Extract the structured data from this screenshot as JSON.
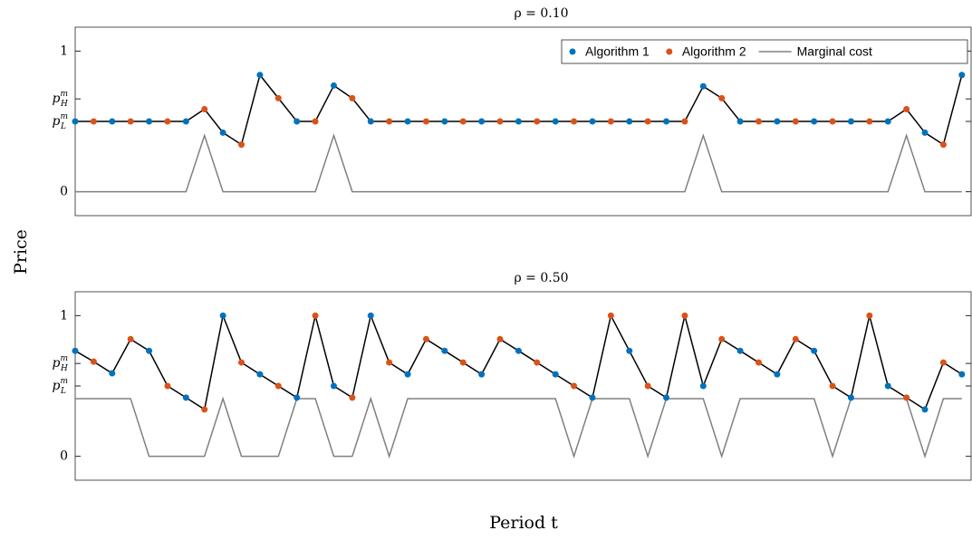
{
  "ylabel": "Price",
  "xlabel": "Period t",
  "chart_data": [
    {
      "type": "line",
      "title": "ρ = 0.10",
      "x": [
        0,
        1,
        2,
        3,
        4,
        5,
        6,
        7,
        8,
        9,
        10,
        11,
        12,
        13,
        14,
        15,
        16,
        17,
        18,
        19,
        20,
        21,
        22,
        23,
        24,
        25,
        26,
        27,
        28,
        29,
        30,
        31,
        32,
        33,
        34,
        35,
        36,
        37,
        38,
        39,
        40,
        41,
        42,
        43,
        44,
        45,
        46,
        47,
        48
      ],
      "xlim": [
        0,
        48.5
      ],
      "ylim": [
        -0.17,
        1.17
      ],
      "yticks": [
        0,
        {
          "value": 0.5,
          "label": {
            "base": "p",
            "sup": "m",
            "sub": "L"
          }
        },
        {
          "value": 0.66,
          "label": {
            "base": "p",
            "sup": "m",
            "sub": "H"
          }
        },
        1
      ],
      "price_line_color": "#000000",
      "legend": "upper right",
      "series": [
        {
          "name": "Algorithm 1",
          "color": "#0072bd",
          "style": "marker",
          "values": [
            0.5,
            null,
            0.5,
            null,
            0.5,
            null,
            0.5,
            null,
            0.42,
            null,
            0.83,
            null,
            0.5,
            null,
            0.755,
            null,
            0.5,
            null,
            0.5,
            null,
            0.5,
            null,
            0.5,
            null,
            0.5,
            null,
            0.5,
            null,
            0.5,
            null,
            0.5,
            null,
            0.5,
            null,
            0.75,
            null,
            0.5,
            null,
            0.5,
            null,
            0.5,
            null,
            0.5,
            null,
            0.5,
            null,
            0.42,
            null,
            0.83
          ]
        },
        {
          "name": "Algorithm 2",
          "color": "#d95319",
          "style": "marker",
          "values": [
            null,
            0.5,
            null,
            0.5,
            null,
            0.5,
            null,
            0.587,
            null,
            0.335,
            null,
            0.665,
            null,
            0.5,
            null,
            0.665,
            null,
            0.5,
            null,
            0.5,
            null,
            0.5,
            null,
            0.5,
            null,
            0.5,
            null,
            0.5,
            null,
            0.5,
            null,
            0.5,
            null,
            0.5,
            null,
            0.665,
            null,
            0.5,
            null,
            0.5,
            null,
            0.5,
            null,
            0.5,
            null,
            0.587,
            null,
            0.335,
            null
          ]
        },
        {
          "name": "Marginal cost",
          "color": "#808080",
          "style": "line",
          "values": [
            0,
            0,
            0,
            0,
            0,
            0,
            0,
            0.4,
            0,
            0,
            0,
            0,
            0,
            0,
            0.4,
            0,
            0,
            0,
            0,
            0,
            0,
            0,
            0,
            0,
            0,
            0,
            0,
            0,
            0,
            0,
            0,
            0,
            0,
            0,
            0.4,
            0,
            0,
            0,
            0,
            0,
            0,
            0,
            0,
            0,
            0,
            0.4,
            0,
            0,
            0
          ]
        }
      ]
    },
    {
      "type": "line",
      "title": "ρ = 0.50",
      "x": [
        0,
        1,
        2,
        3,
        4,
        5,
        6,
        7,
        8,
        9,
        10,
        11,
        12,
        13,
        14,
        15,
        16,
        17,
        18,
        19,
        20,
        21,
        22,
        23,
        24,
        25,
        26,
        27,
        28,
        29,
        30,
        31,
        32,
        33,
        34,
        35,
        36,
        37,
        38,
        39,
        40,
        41,
        42,
        43,
        44,
        45,
        46,
        47,
        48
      ],
      "xlim": [
        0,
        48.5
      ],
      "ylim": [
        -0.17,
        1.17
      ],
      "yticks": [
        0,
        {
          "value": 0.5,
          "label": {
            "base": "p",
            "sup": "m",
            "sub": "L"
          }
        },
        {
          "value": 0.66,
          "label": {
            "base": "p",
            "sup": "m",
            "sub": "H"
          }
        },
        1
      ],
      "price_line_color": "#000000",
      "series": [
        {
          "name": "Algorithm 1",
          "color": "#0072bd",
          "style": "marker",
          "values": [
            0.75,
            null,
            0.59,
            null,
            0.75,
            null,
            0.417,
            null,
            1,
            null,
            0.583,
            null,
            0.417,
            null,
            0.5,
            null,
            1,
            null,
            0.583,
            null,
            0.75,
            null,
            0.583,
            null,
            0.75,
            null,
            0.583,
            null,
            0.417,
            null,
            0.75,
            null,
            0.417,
            null,
            0.5,
            null,
            0.75,
            null,
            0.583,
            null,
            0.75,
            null,
            0.417,
            null,
            0.5,
            null,
            0.333,
            null,
            0.583
          ]
        },
        {
          "name": "Algorithm 2",
          "color": "#d95319",
          "style": "marker",
          "values": [
            null,
            0.673,
            null,
            0.833,
            null,
            0.5,
            null,
            0.333,
            null,
            0.667,
            null,
            0.5,
            null,
            1,
            null,
            0.417,
            null,
            0.667,
            null,
            0.833,
            null,
            0.667,
            null,
            0.833,
            null,
            0.667,
            null,
            0.5,
            null,
            1,
            null,
            0.5,
            null,
            1,
            null,
            0.833,
            null,
            0.667,
            null,
            0.833,
            null,
            0.5,
            null,
            1,
            null,
            0.417,
            null,
            0.667,
            null
          ]
        },
        {
          "name": "Marginal cost",
          "color": "#808080",
          "style": "line",
          "values": [
            0.41,
            0.41,
            0.41,
            0.41,
            0,
            0,
            0,
            0,
            0.41,
            0,
            0,
            0,
            0.41,
            0.41,
            0,
            0,
            0.41,
            0,
            0.41,
            0.41,
            0.41,
            0.41,
            0.41,
            0.41,
            0.41,
            0.41,
            0.41,
            0,
            0.41,
            0.41,
            0.41,
            0,
            0.41,
            0.41,
            0.41,
            0,
            0.41,
            0.41,
            0.41,
            0.41,
            0.41,
            0,
            0.41,
            0.41,
            0.41,
            0.41,
            0,
            0.41,
            0.41
          ]
        }
      ]
    }
  ]
}
